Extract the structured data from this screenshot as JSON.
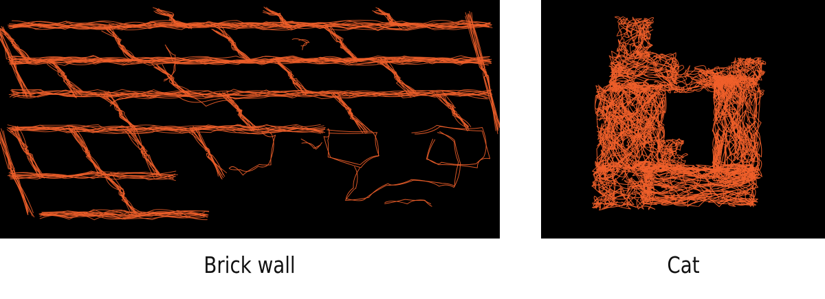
{
  "captions": {
    "brick_wall": "Brick wall",
    "cat": "Cat"
  },
  "colors": {
    "background": "#000000",
    "stroke": "#ef5f2a",
    "page": "#ffffff"
  }
}
